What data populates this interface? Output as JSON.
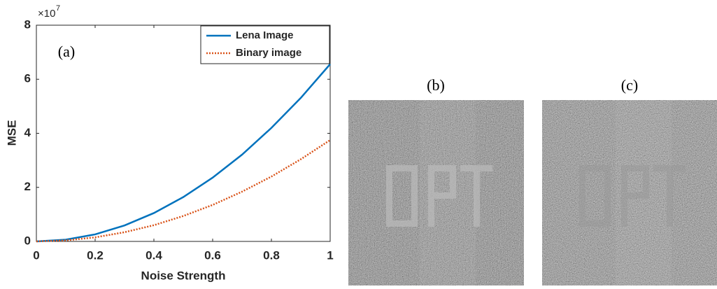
{
  "chart_data": {
    "type": "line",
    "annotation": "(a)",
    "xlabel": "Noise Strength",
    "ylabel": "MSE",
    "y_scale_base": "×10",
    "y_scale_exponent": "7",
    "x": [
      0,
      0.1,
      0.2,
      0.3,
      0.4,
      0.5,
      0.6,
      0.7,
      0.8,
      0.9,
      1
    ],
    "series": [
      {
        "name": "Lena Image",
        "color": "#0072bd",
        "line_style": "solid",
        "values": [
          0,
          0.066,
          0.26,
          0.59,
          1.05,
          1.64,
          2.36,
          3.21,
          4.2,
          5.31,
          6.56
        ]
      },
      {
        "name": "Binary image",
        "color": "#d95319",
        "line_style": "dotted",
        "values": [
          0,
          0.0375,
          0.15,
          0.34,
          0.6,
          0.94,
          1.35,
          1.84,
          2.4,
          3.04,
          3.75
        ]
      }
    ],
    "xlim": [
      0,
      1
    ],
    "ylim": [
      0,
      8
    ],
    "xticks": [
      0,
      0.2,
      0.4,
      0.6,
      0.8,
      1
    ],
    "yticks": [
      0,
      2,
      4,
      6,
      8
    ],
    "legend": "upper-right"
  },
  "images": [
    {
      "label": "(b)"
    },
    {
      "label": "(c)"
    }
  ]
}
